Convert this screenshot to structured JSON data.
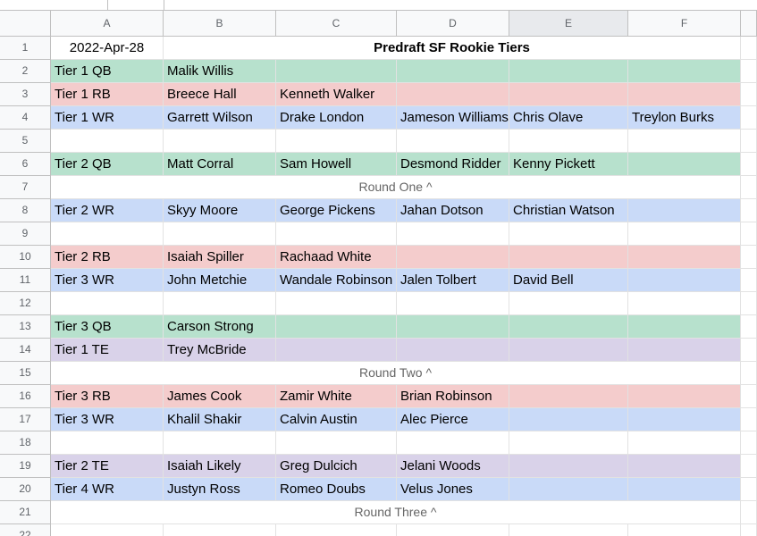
{
  "columns": [
    "A",
    "B",
    "C",
    "D",
    "E",
    "F"
  ],
  "rows": [
    {
      "number": 1,
      "date": "2022-Apr-28",
      "title": "Predraft SF Rookie Tiers"
    },
    {
      "number": 2,
      "fill": "#b7e1cd",
      "cells": [
        "Tier 1 QB",
        "Malik Willis"
      ]
    },
    {
      "number": 3,
      "fill": "#f4cccc",
      "cells": [
        "Tier 1 RB",
        "Breece Hall",
        "Kenneth Walker"
      ]
    },
    {
      "number": 4,
      "fill": "#c9daf8",
      "cells": [
        "Tier 1 WR",
        "Garrett Wilson",
        "Drake London",
        "Jameson Williams",
        "Chris Olave",
        "Treylon Burks"
      ]
    },
    {
      "number": 5
    },
    {
      "number": 6,
      "fill": "#b7e1cd",
      "cells": [
        "Tier 2 QB",
        "Matt Corral",
        "Sam Howell",
        "Desmond Ridder",
        "Kenny Pickett"
      ]
    },
    {
      "number": 7,
      "note": "Round One  ^"
    },
    {
      "number": 8,
      "fill": "#c9daf8",
      "cells": [
        "Tier 2 WR",
        "Skyy Moore",
        "George Pickens",
        "Jahan Dotson",
        "Christian Watson"
      ]
    },
    {
      "number": 9
    },
    {
      "number": 10,
      "fill": "#f4cccc",
      "cells": [
        "Tier 2 RB",
        "Isaiah Spiller",
        "Rachaad White"
      ]
    },
    {
      "number": 11,
      "fill": "#c9daf8",
      "cells": [
        "Tier 3 WR",
        "John Metchie",
        "Wandale Robinson",
        "Jalen Tolbert",
        "David Bell"
      ]
    },
    {
      "number": 12
    },
    {
      "number": 13,
      "fill": "#b7e1cd",
      "cells": [
        "Tier 3 QB",
        "Carson Strong"
      ]
    },
    {
      "number": 14,
      "fill": "#d9d2e9",
      "cells": [
        "Tier 1 TE",
        "Trey McBride"
      ]
    },
    {
      "number": 15,
      "note": "Round Two ^"
    },
    {
      "number": 16,
      "fill": "#f4cccc",
      "cells": [
        "Tier 3 RB",
        "James Cook",
        "Zamir White",
        "Brian Robinson"
      ]
    },
    {
      "number": 17,
      "fill": "#c9daf8",
      "cells": [
        "Tier 3 WR",
        "Khalil Shakir",
        "Calvin Austin",
        "Alec Pierce"
      ]
    },
    {
      "number": 18
    },
    {
      "number": 19,
      "fill": "#d9d2e9",
      "cells": [
        "Tier 2 TE",
        "Isaiah Likely",
        "Greg Dulcich",
        "Jelani Woods"
      ]
    },
    {
      "number": 20,
      "fill": "#c9daf8",
      "cells": [
        "Tier 4 WR",
        "Justyn Ross",
        "Romeo Doubs",
        "Velus Jones"
      ]
    },
    {
      "number": 21,
      "note": "Round Three ^"
    },
    {
      "number": 22
    }
  ]
}
